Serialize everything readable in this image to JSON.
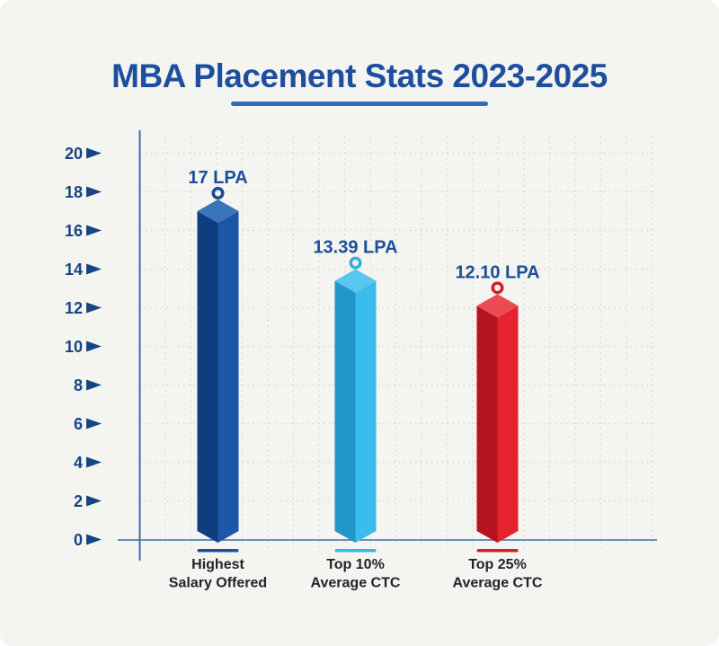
{
  "title": "MBA Placement Stats 2023-2025",
  "colors": {
    "background": "#f4f4f1",
    "title": "#1d4f9e",
    "title_underline": "#2e6db9",
    "axis": "#3f6ca6",
    "grid": "#d9d9d6",
    "tick_text": "#174485",
    "value_text": "#1b4e9a",
    "category_text": "#20242a"
  },
  "chart_data": {
    "type": "bar",
    "style": "3d-column",
    "title": "MBA Placement Stats 2023-2025",
    "xlabel": "",
    "ylabel": "",
    "ylim": [
      0,
      20
    ],
    "y_ticks": [
      0,
      2,
      4,
      6,
      8,
      10,
      12,
      14,
      16,
      18,
      20
    ],
    "grid": true,
    "tick_marker": "right-arrow",
    "bars": [
      {
        "name": "Highest Salary Offered",
        "category_lines": [
          "Highest",
          "Salary Offered"
        ],
        "value": 17,
        "label": "17 LPA",
        "color_left": "#0f3d7d",
        "color_right": "#1c56a6",
        "color_top": "#3a74b9",
        "ring_color": "#174b93",
        "legend_line_color": "#1d4f9e"
      },
      {
        "name": "Top 10% Average CTC",
        "category_lines": [
          "Top 10%",
          "Average CTC"
        ],
        "value": 13.39,
        "label": "13.39 LPA",
        "color_left": "#2295c9",
        "color_right": "#39bdef",
        "color_top": "#58c6f1",
        "ring_color": "#36aee2",
        "legend_line_color": "#3cb4e8"
      },
      {
        "name": "Top 25% Average CTC",
        "category_lines": [
          "Top 25%",
          "Average CTC"
        ],
        "value": 12.1,
        "label": "12.10 LPA",
        "color_left": "#b51320",
        "color_right": "#e3242f",
        "color_top": "#eb4a52",
        "ring_color": "#d31f2b",
        "legend_line_color": "#d31f2b"
      }
    ]
  }
}
